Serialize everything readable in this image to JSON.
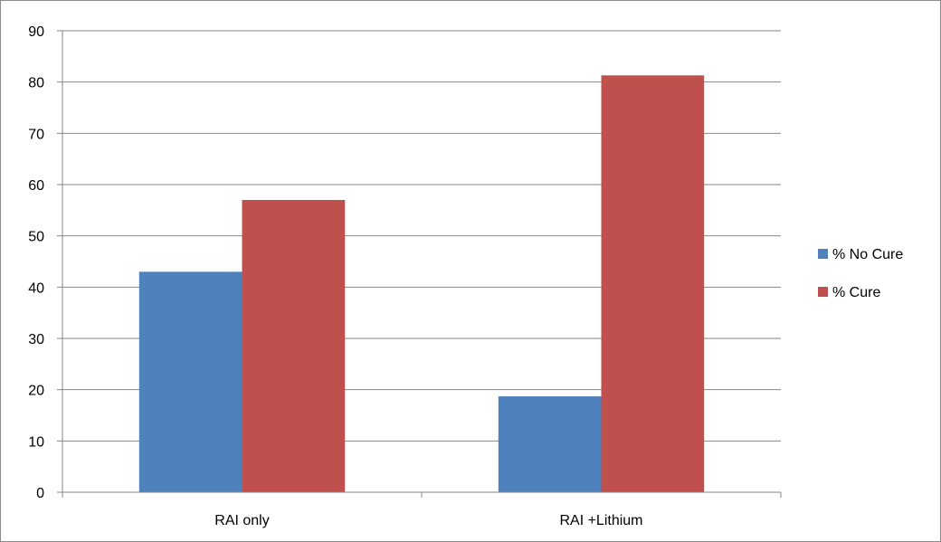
{
  "chart_data": {
    "type": "bar",
    "categories": [
      "RAI only",
      "RAI +Lithium"
    ],
    "series": [
      {
        "name": "% No Cure",
        "values": [
          43,
          18.7
        ],
        "color": "#4f81bd"
      },
      {
        "name": "% Cure",
        "values": [
          57,
          81.3
        ],
        "color": "#c0504d"
      }
    ],
    "ylim": [
      0,
      90
    ],
    "yticks": [
      0,
      10,
      20,
      30,
      40,
      50,
      60,
      70,
      80,
      90
    ],
    "grid": true,
    "gridline_color": "#868686",
    "legend_position": "right"
  }
}
